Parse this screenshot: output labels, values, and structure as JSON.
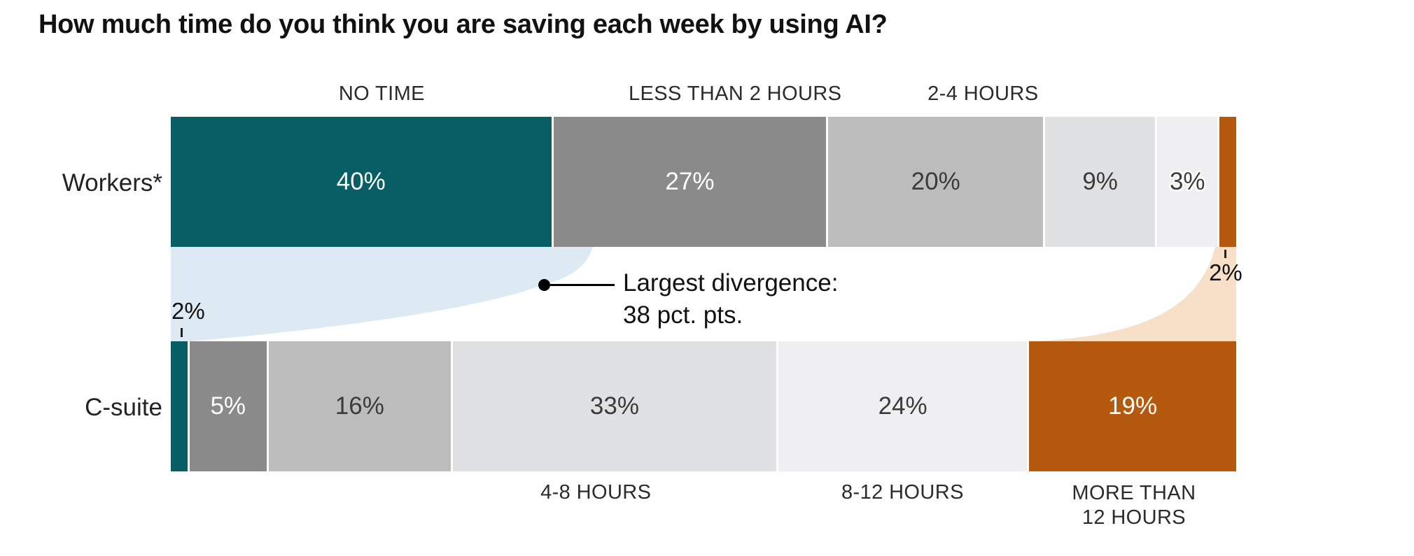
{
  "title": "How much time do you think you are saving each week by using AI?",
  "chart_data": {
    "type": "bar",
    "subtype": "stacked-horizontal-comparison",
    "unit": "%",
    "categories": [
      "NO TIME",
      "LESS THAN 2 HOURS",
      "2-4 HOURS",
      "4-8 HOURS",
      "8-12 HOURS",
      "MORE THAN 12 HOURS"
    ],
    "series": [
      {
        "name": "Workers*",
        "values": [
          40,
          27,
          20,
          9,
          3,
          2
        ]
      },
      {
        "name": "C-suite",
        "values": [
          2,
          5,
          16,
          33,
          24,
          19
        ]
      }
    ],
    "category_labels_position": [
      "top",
      "top",
      "top",
      "bottom",
      "bottom",
      "bottom"
    ],
    "outside_value_labels": {
      "workers_more_than_12": "2%",
      "csuite_no_time": "2%"
    },
    "annotation": {
      "line1": "Largest divergence:",
      "line2": "38 pct. pts."
    },
    "colors": {
      "teal": "#075E65",
      "dark_gray": "#8A8A8A",
      "mid_gray": "#BCBCBD",
      "light_gray": "#E0E1E3",
      "lighter_gray": "#EFEFF1",
      "orange": "#B4590E",
      "flow_teal": "#DEEAF3",
      "flow_orange": "#F8DFC8",
      "dark_text": "#3B3B3B",
      "light_text": "#FFFFFF"
    },
    "category_color_keys": [
      "teal",
      "dark_gray",
      "mid_gray",
      "light_gray",
      "lighter_gray",
      "orange"
    ],
    "legend": "none",
    "grid": false
  }
}
